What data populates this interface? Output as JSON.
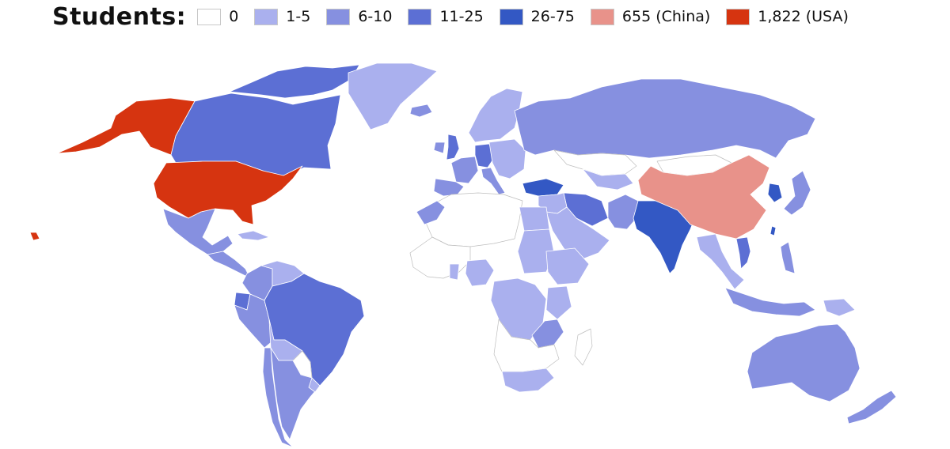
{
  "legend": {
    "title": "Students:",
    "items": [
      {
        "label": "0",
        "color": "#ffffff"
      },
      {
        "label": "1-5",
        "color": "#aab0ee"
      },
      {
        "label": "6-10",
        "color": "#8690e0"
      },
      {
        "label": "11-25",
        "color": "#5c6fd4"
      },
      {
        "label": "26-75",
        "color": "#3358c4"
      },
      {
        "label": "655 (China)",
        "color": "#e8928a"
      },
      {
        "label": "1,822 (USA)",
        "color": "#d63410"
      }
    ]
  },
  "countries": [
    {
      "name": "Alaska",
      "bin": "1,822 (USA)"
    },
    {
      "name": "Canada",
      "bin": "11-25"
    },
    {
      "name": "Canadian Arctic",
      "bin": "11-25"
    },
    {
      "name": "Greenland",
      "bin": "1-5"
    },
    {
      "name": "United States",
      "bin": "1,822 (USA)"
    },
    {
      "name": "Hawaii",
      "bin": "1,822 (USA)"
    },
    {
      "name": "Mexico",
      "bin": "6-10"
    },
    {
      "name": "Central America",
      "bin": "6-10"
    },
    {
      "name": "Cuba",
      "bin": "1-5"
    },
    {
      "name": "Colombia",
      "bin": "6-10"
    },
    {
      "name": "Venezuela",
      "bin": "1-5"
    },
    {
      "name": "Ecuador",
      "bin": "11-25"
    },
    {
      "name": "Peru",
      "bin": "6-10"
    },
    {
      "name": "Brazil",
      "bin": "11-25"
    },
    {
      "name": "Bolivia",
      "bin": "1-5"
    },
    {
      "name": "Paraguay",
      "bin": "0"
    },
    {
      "name": "Chile",
      "bin": "6-10"
    },
    {
      "name": "Argentina",
      "bin": "6-10"
    },
    {
      "name": "Uruguay",
      "bin": "1-5"
    },
    {
      "name": "Iceland",
      "bin": "6-10"
    },
    {
      "name": "United Kingdom",
      "bin": "11-25"
    },
    {
      "name": "Ireland",
      "bin": "6-10"
    },
    {
      "name": "Scandinavia",
      "bin": "1-5"
    },
    {
      "name": "Western Europe",
      "bin": "6-10"
    },
    {
      "name": "Germany",
      "bin": "11-25"
    },
    {
      "name": "Iberia",
      "bin": "6-10"
    },
    {
      "name": "Italy",
      "bin": "6-10"
    },
    {
      "name": "Eastern Europe",
      "bin": "1-5"
    },
    {
      "name": "Russia",
      "bin": "6-10"
    },
    {
      "name": "Kazakhstan",
      "bin": "0"
    },
    {
      "name": "Central Asia",
      "bin": "1-5"
    },
    {
      "name": "Turkey",
      "bin": "26-75"
    },
    {
      "name": "Iran",
      "bin": "11-25"
    },
    {
      "name": "Middle East",
      "bin": "1-5"
    },
    {
      "name": "Saudi Arabia",
      "bin": "1-5"
    },
    {
      "name": "Pakistan",
      "bin": "6-10"
    },
    {
      "name": "India",
      "bin": "26-75"
    },
    {
      "name": "Mongolia",
      "bin": "0"
    },
    {
      "name": "China",
      "bin": "655 (China)"
    },
    {
      "name": "Korea",
      "bin": "26-75"
    },
    {
      "name": "Japan",
      "bin": "6-10"
    },
    {
      "name": "Southeast Asia",
      "bin": "1-5"
    },
    {
      "name": "Vietnam",
      "bin": "11-25"
    },
    {
      "name": "Taiwan",
      "bin": "26-75"
    },
    {
      "name": "Philippines",
      "bin": "6-10"
    },
    {
      "name": "Indonesia",
      "bin": "6-10"
    },
    {
      "name": "Papua New Guinea",
      "bin": "1-5"
    },
    {
      "name": "Australia",
      "bin": "6-10"
    },
    {
      "name": "New Zealand",
      "bin": "6-10"
    },
    {
      "name": "North Africa",
      "bin": "0"
    },
    {
      "name": "Morocco",
      "bin": "6-10"
    },
    {
      "name": "Egypt",
      "bin": "1-5"
    },
    {
      "name": "Sudan",
      "bin": "1-5"
    },
    {
      "name": "West Africa",
      "bin": "0"
    },
    {
      "name": "Ghana",
      "bin": "1-5"
    },
    {
      "name": "Nigeria",
      "bin": "1-5"
    },
    {
      "name": "Ethiopia",
      "bin": "1-5"
    },
    {
      "name": "Central Africa",
      "bin": "1-5"
    },
    {
      "name": "Kenya",
      "bin": "1-5"
    },
    {
      "name": "Tanzania",
      "bin": "6-10"
    },
    {
      "name": "Southern Africa",
      "bin": "0"
    },
    {
      "name": "South Africa",
      "bin": "1-5"
    },
    {
      "name": "Madagascar",
      "bin": "0"
    }
  ]
}
